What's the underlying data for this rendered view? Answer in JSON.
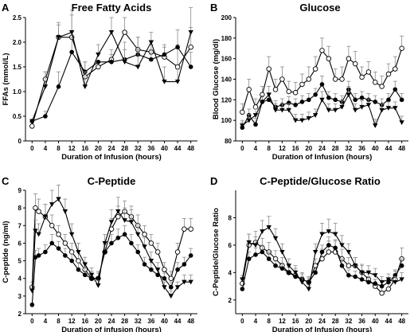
{
  "chart_data": [
    {
      "id": "A",
      "type": "line",
      "panel_letter": "A",
      "title": "Free Fatty Acids",
      "xlabel": "Duration of Infusion (hours)",
      "ylabel": "FFAs (mmol/L)",
      "xlim": [
        -2,
        50
      ],
      "ylim": [
        0,
        2.5
      ],
      "xticks": [
        0,
        4,
        8,
        12,
        16,
        20,
        24,
        28,
        32,
        36,
        40,
        44,
        48
      ],
      "yticks": [
        0,
        0.5,
        1.0,
        1.5,
        2.0,
        2.5
      ],
      "ytick_labels": [
        "0",
        "0.5",
        "1.0",
        "1.5",
        "2.0",
        "2.5"
      ],
      "series": [
        {
          "marker": "open-circle",
          "x": [
            0,
            4,
            8,
            12,
            16,
            20,
            24,
            28,
            32,
            36,
            40,
            44,
            48
          ],
          "y": [
            0.3,
            1.25,
            2.1,
            2.1,
            1.3,
            1.5,
            1.65,
            2.2,
            1.85,
            1.8,
            1.7,
            1.5,
            1.9
          ],
          "err": [
            0,
            0.15,
            0.3,
            0.55,
            0.3,
            0,
            0.2,
            0.3,
            0.25,
            0.15,
            0.2,
            0.45,
            0.4
          ]
        },
        {
          "marker": "filled-circle",
          "x": [
            0,
            4,
            8,
            12,
            16,
            20,
            24,
            28,
            32,
            36,
            40,
            44,
            48
          ],
          "y": [
            0.4,
            0.5,
            1.1,
            1.8,
            1.4,
            1.6,
            1.6,
            1.65,
            1.75,
            1.65,
            1.75,
            1.9,
            1.5
          ],
          "err": [
            0,
            0.1,
            0.3,
            0.3,
            0.2,
            0,
            0.15,
            0.2,
            0.35,
            0.2,
            0.2,
            0.35,
            0.3
          ]
        },
        {
          "marker": "filled-triangle",
          "x": [
            0,
            4,
            8,
            12,
            16,
            20,
            24,
            28,
            32,
            36,
            40,
            44,
            48
          ],
          "y": [
            0.4,
            1.1,
            2.1,
            2.2,
            1.1,
            1.75,
            2.2,
            1.6,
            1.5,
            2.0,
            1.2,
            1.2,
            2.2
          ],
          "err": [
            0,
            0.3,
            0.25,
            0.35,
            0.3,
            0.2,
            0.3,
            0.4,
            0.35,
            0.2,
            0.3,
            0.25,
            0.5
          ]
        }
      ]
    },
    {
      "id": "B",
      "type": "line",
      "panel_letter": "B",
      "title": "Glucose",
      "xlabel": "Duration of Infusion (hours)",
      "ylabel": "Blood Glucose (mg/dl)",
      "xlim": [
        -2,
        50
      ],
      "ylim": [
        80,
        200
      ],
      "xticks": [
        0,
        4,
        8,
        12,
        16,
        20,
        24,
        28,
        32,
        36,
        40,
        44,
        48
      ],
      "yticks": [
        80,
        100,
        120,
        140,
        160,
        180,
        200
      ],
      "ytick_labels": [
        "80",
        "100",
        "120",
        "140",
        "160",
        "180",
        "200"
      ],
      "series": [
        {
          "marker": "open-circle",
          "x": [
            0,
            2,
            4,
            6,
            8,
            10,
            12,
            14,
            16,
            18,
            20,
            22,
            24,
            26,
            28,
            30,
            32,
            34,
            36,
            38,
            40,
            42,
            44,
            46,
            48
          ],
          "y": [
            108,
            130,
            113,
            125,
            150,
            130,
            140,
            128,
            127,
            135,
            140,
            150,
            168,
            160,
            140,
            140,
            160,
            155,
            142,
            147,
            137,
            133,
            145,
            150,
            170
          ],
          "err": [
            8,
            10,
            8,
            8,
            12,
            10,
            12,
            10,
            10,
            10,
            12,
            12,
            12,
            12,
            10,
            12,
            12,
            12,
            10,
            10,
            10,
            10,
            10,
            12,
            12
          ]
        },
        {
          "marker": "filled-circle",
          "x": [
            0,
            2,
            4,
            6,
            8,
            10,
            12,
            14,
            16,
            18,
            20,
            22,
            24,
            26,
            28,
            30,
            32,
            34,
            36,
            38,
            40,
            42,
            44,
            46,
            48
          ],
          "y": [
            93,
            105,
            96,
            118,
            120,
            113,
            115,
            117,
            115,
            118,
            120,
            125,
            135,
            122,
            120,
            118,
            130,
            120,
            122,
            120,
            118,
            115,
            120,
            130,
            120
          ],
          "err": [
            5,
            6,
            6,
            6,
            6,
            6,
            6,
            6,
            6,
            6,
            6,
            6,
            8,
            6,
            6,
            6,
            8,
            6,
            6,
            6,
            6,
            6,
            6,
            8,
            6
          ]
        },
        {
          "marker": "filled-triangle",
          "x": [
            0,
            2,
            4,
            6,
            8,
            10,
            12,
            14,
            16,
            18,
            20,
            22,
            24,
            26,
            28,
            30,
            32,
            34,
            36,
            38,
            40,
            42,
            44,
            46,
            48
          ],
          "y": [
            95,
            100,
            105,
            118,
            125,
            110,
            110,
            110,
            100,
            100,
            102,
            105,
            120,
            110,
            110,
            113,
            125,
            110,
            113,
            115,
            95,
            110,
            112,
            112,
            98
          ],
          "err": [
            5,
            6,
            6,
            6,
            8,
            6,
            6,
            6,
            6,
            6,
            6,
            6,
            8,
            6,
            6,
            6,
            8,
            6,
            6,
            6,
            6,
            6,
            6,
            6,
            6
          ]
        }
      ]
    },
    {
      "id": "C",
      "type": "line",
      "panel_letter": "C",
      "title": "C-Peptide",
      "xlabel": "Duration of infusion (hours)",
      "ylabel": "C-peptide (ng/ml)",
      "xlim": [
        -2,
        50
      ],
      "ylim": [
        2,
        9
      ],
      "xticks": [
        0,
        4,
        8,
        12,
        16,
        20,
        24,
        28,
        32,
        36,
        40,
        44,
        48
      ],
      "yticks": [
        2,
        3,
        4,
        5,
        6,
        7,
        8,
        9
      ],
      "ytick_labels": [
        "2",
        "3",
        "4",
        "5",
        "6",
        "7",
        "8",
        "9"
      ],
      "series": [
        {
          "marker": "open-circle",
          "x": [
            0,
            1,
            2,
            4,
            6,
            8,
            10,
            12,
            14,
            16,
            18,
            20,
            22,
            24,
            26,
            28,
            30,
            32,
            34,
            36,
            38,
            40,
            42,
            44,
            46,
            48
          ],
          "y": [
            3.5,
            8.0,
            7.8,
            7.5,
            7.0,
            6.5,
            6.0,
            5.5,
            5.0,
            4.5,
            4.0,
            4.0,
            5.5,
            6.8,
            7.5,
            7.8,
            7.5,
            7.0,
            6.5,
            6.0,
            5.5,
            4.5,
            4.0,
            5.5,
            6.8,
            6.8
          ],
          "err": [
            0.3,
            0.8,
            0.7,
            0.7,
            0.6,
            0.5,
            0.5,
            0.5,
            0.5,
            0.4,
            0.4,
            0.4,
            0.5,
            0.6,
            0.6,
            0.6,
            0.6,
            0.6,
            0.5,
            0.5,
            0.5,
            0.4,
            0.4,
            0.5,
            0.6,
            0.6
          ]
        },
        {
          "marker": "filled-circle",
          "x": [
            0,
            1,
            2,
            4,
            6,
            8,
            10,
            12,
            14,
            16,
            18,
            20,
            22,
            24,
            26,
            28,
            30,
            32,
            34,
            36,
            38,
            40,
            42,
            44,
            46,
            48
          ],
          "y": [
            2.5,
            5.2,
            5.3,
            5.5,
            6.0,
            5.7,
            5.3,
            5.0,
            4.5,
            4.2,
            4.0,
            4.0,
            5.5,
            6.0,
            6.3,
            6.5,
            6.0,
            5.5,
            4.8,
            4.5,
            4.2,
            4.0,
            3.5,
            4.5,
            4.8,
            5.3
          ],
          "err": [
            0.1,
            0.4,
            0.4,
            0.4,
            0.5,
            0.4,
            0.4,
            0.4,
            0.4,
            0.4,
            0.3,
            0.3,
            0.4,
            0.5,
            0.5,
            0.5,
            0.5,
            0.4,
            0.4,
            0.4,
            0.3,
            0.3,
            0.3,
            0.4,
            0.4,
            0.4
          ]
        },
        {
          "marker": "filled-triangle",
          "x": [
            0,
            1,
            2,
            4,
            6,
            8,
            10,
            12,
            14,
            16,
            18,
            20,
            22,
            24,
            26,
            28,
            30,
            32,
            34,
            36,
            38,
            40,
            42,
            44,
            46,
            48
          ],
          "y": [
            3.3,
            6.7,
            6.5,
            7.5,
            8.2,
            8.5,
            7.8,
            6.5,
            5.5,
            4.8,
            4.2,
            3.6,
            6.0,
            7.2,
            7.8,
            7.3,
            7.2,
            6.5,
            5.8,
            5.0,
            4.5,
            3.5,
            3.0,
            3.5,
            3.8,
            3.8
          ],
          "err": [
            0.3,
            0.6,
            0.6,
            0.7,
            0.8,
            0.8,
            0.7,
            0.6,
            0.5,
            0.4,
            0.4,
            0.3,
            0.5,
            0.7,
            0.8,
            0.7,
            0.7,
            0.6,
            0.5,
            0.5,
            0.4,
            0.3,
            0.3,
            0.3,
            0.4,
            0.4
          ]
        }
      ]
    },
    {
      "id": "D",
      "type": "line",
      "panel_letter": "D",
      "title": "C-Peptide/Glucose Ratio",
      "xlabel": "Duration of Infusion (hours)",
      "ylabel": "C-Peptide/Glucose Ratio",
      "xlim": [
        -2,
        50
      ],
      "ylim": [
        1,
        10
      ],
      "xticks": [
        0,
        4,
        8,
        12,
        16,
        20,
        24,
        28,
        32,
        36,
        40,
        44,
        48
      ],
      "yticks": [
        2,
        4,
        6,
        8
      ],
      "ytick_labels": [
        "2",
        "4",
        "6",
        "8"
      ],
      "series": [
        {
          "marker": "open-circle",
          "x": [
            0,
            2,
            4,
            6,
            8,
            10,
            12,
            14,
            16,
            18,
            20,
            22,
            24,
            26,
            28,
            30,
            32,
            34,
            36,
            38,
            40,
            42,
            44,
            46,
            48
          ],
          "y": [
            3.2,
            6.0,
            6.2,
            5.8,
            5.5,
            5.0,
            4.5,
            4.0,
            3.8,
            3.5,
            3.3,
            4.5,
            5.0,
            5.5,
            5.5,
            5.0,
            4.5,
            4.5,
            4.0,
            3.5,
            3.0,
            2.5,
            2.8,
            3.5,
            5.0
          ],
          "err": [
            0.3,
            0.8,
            0.8,
            0.7,
            0.7,
            0.6,
            0.6,
            0.5,
            0.5,
            0.5,
            0.4,
            0.5,
            0.7,
            0.8,
            0.8,
            0.7,
            0.6,
            0.6,
            0.6,
            0.5,
            0.5,
            0.5,
            0.5,
            0.6,
            0.8
          ]
        },
        {
          "marker": "filled-circle",
          "x": [
            0,
            2,
            4,
            6,
            8,
            10,
            12,
            14,
            16,
            18,
            20,
            22,
            24,
            26,
            28,
            30,
            32,
            34,
            36,
            38,
            40,
            42,
            44,
            46,
            48
          ],
          "y": [
            2.8,
            5.0,
            5.3,
            5.5,
            5.0,
            4.5,
            4.3,
            4.0,
            3.7,
            3.5,
            3.3,
            4.0,
            5.5,
            6.0,
            5.8,
            4.5,
            3.8,
            3.7,
            3.5,
            3.3,
            3.2,
            3.0,
            3.3,
            3.8,
            4.5
          ],
          "err": [
            0.1,
            0.5,
            0.5,
            0.5,
            0.5,
            0.4,
            0.4,
            0.4,
            0.4,
            0.4,
            0.3,
            0.4,
            0.5,
            0.6,
            0.6,
            0.5,
            0.4,
            0.4,
            0.4,
            0.4,
            0.3,
            0.3,
            0.3,
            0.4,
            0.5
          ]
        },
        {
          "marker": "filled-triangle",
          "x": [
            0,
            2,
            4,
            6,
            8,
            10,
            12,
            14,
            16,
            18,
            20,
            22,
            24,
            26,
            28,
            30,
            32,
            34,
            36,
            38,
            40,
            42,
            44,
            46,
            48
          ],
          "y": [
            3.5,
            6.2,
            6.0,
            7.0,
            7.3,
            6.5,
            5.5,
            4.5,
            4.0,
            3.3,
            2.8,
            5.5,
            6.8,
            7.0,
            6.8,
            6.0,
            5.5,
            4.5,
            4.0,
            4.0,
            3.8,
            3.3,
            3.5,
            3.3,
            3.5
          ],
          "err": [
            0.3,
            0.6,
            0.6,
            0.8,
            0.8,
            0.7,
            0.6,
            0.5,
            0.5,
            0.4,
            0.3,
            0.6,
            0.8,
            0.9,
            0.8,
            0.7,
            0.6,
            0.6,
            0.5,
            0.5,
            0.5,
            0.4,
            0.4,
            0.4,
            0.5
          ]
        }
      ]
    }
  ]
}
